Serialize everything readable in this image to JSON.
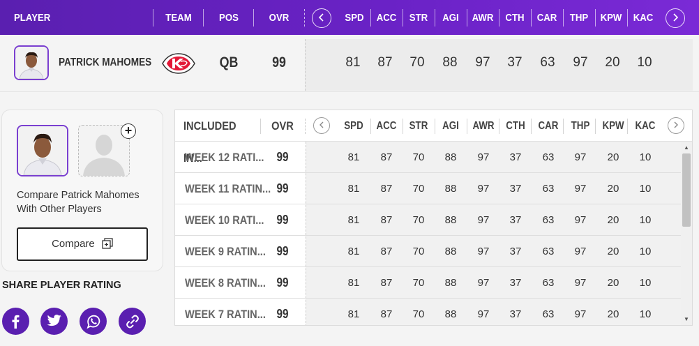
{
  "header": {
    "player": "PLAYER",
    "team": "TEAM",
    "pos": "POS",
    "ovr": "OVR",
    "stats": [
      "SPD",
      "ACC",
      "STR",
      "AGI",
      "AWR",
      "CTH",
      "CAR",
      "THP",
      "KPW",
      "KAC"
    ],
    "prev_icon": "chevron-left-icon",
    "next_icon": "chevron-right-icon"
  },
  "player": {
    "name": "PATRICK MAHOMES",
    "team_logo": "kansas-city-chiefs-logo",
    "pos": "QB",
    "ovr": "99",
    "stats": [
      "81",
      "87",
      "70",
      "88",
      "97",
      "37",
      "63",
      "97",
      "20",
      "10"
    ]
  },
  "compare": {
    "text": "Compare Patrick Mahomes With Other Players",
    "button": "Compare",
    "button_icon": "copy-icon",
    "add_icon": "plus-icon"
  },
  "share": {
    "title": "SHARE PLAYER RATING",
    "icons": [
      "facebook-icon",
      "twitter-icon",
      "whatsapp-icon",
      "link-icon"
    ]
  },
  "table": {
    "col_included": "INCLUDED IN...",
    "col_ovr": "OVR",
    "stats": [
      "SPD",
      "ACC",
      "STR",
      "AGI",
      "AWR",
      "CTH",
      "CAR",
      "THP",
      "KPW",
      "KAC"
    ],
    "rows": [
      {
        "name": "WEEK 12 RATI...",
        "ovr": "99",
        "stats": [
          "81",
          "87",
          "70",
          "88",
          "97",
          "37",
          "63",
          "97",
          "20",
          "10"
        ]
      },
      {
        "name": "WEEK 11 RATIN...",
        "ovr": "99",
        "stats": [
          "81",
          "87",
          "70",
          "88",
          "97",
          "37",
          "63",
          "97",
          "20",
          "10"
        ]
      },
      {
        "name": "WEEK 10 RATI...",
        "ovr": "99",
        "stats": [
          "81",
          "87",
          "70",
          "88",
          "97",
          "37",
          "63",
          "97",
          "20",
          "10"
        ]
      },
      {
        "name": "WEEK 9 RATIN...",
        "ovr": "99",
        "stats": [
          "81",
          "87",
          "70",
          "88",
          "97",
          "37",
          "63",
          "97",
          "20",
          "10"
        ]
      },
      {
        "name": "WEEK 8 RATIN...",
        "ovr": "99",
        "stats": [
          "81",
          "87",
          "70",
          "88",
          "97",
          "37",
          "63",
          "97",
          "20",
          "10"
        ]
      },
      {
        "name": "WEEK 7 RATIN...",
        "ovr": "99",
        "stats": [
          "81",
          "87",
          "70",
          "88",
          "97",
          "37",
          "63",
          "97",
          "20",
          "10"
        ]
      }
    ]
  },
  "colors": {
    "accent": "#5a1fb0",
    "header_gradient_end": "#7a2ad6",
    "chiefs_red": "#e31837"
  }
}
